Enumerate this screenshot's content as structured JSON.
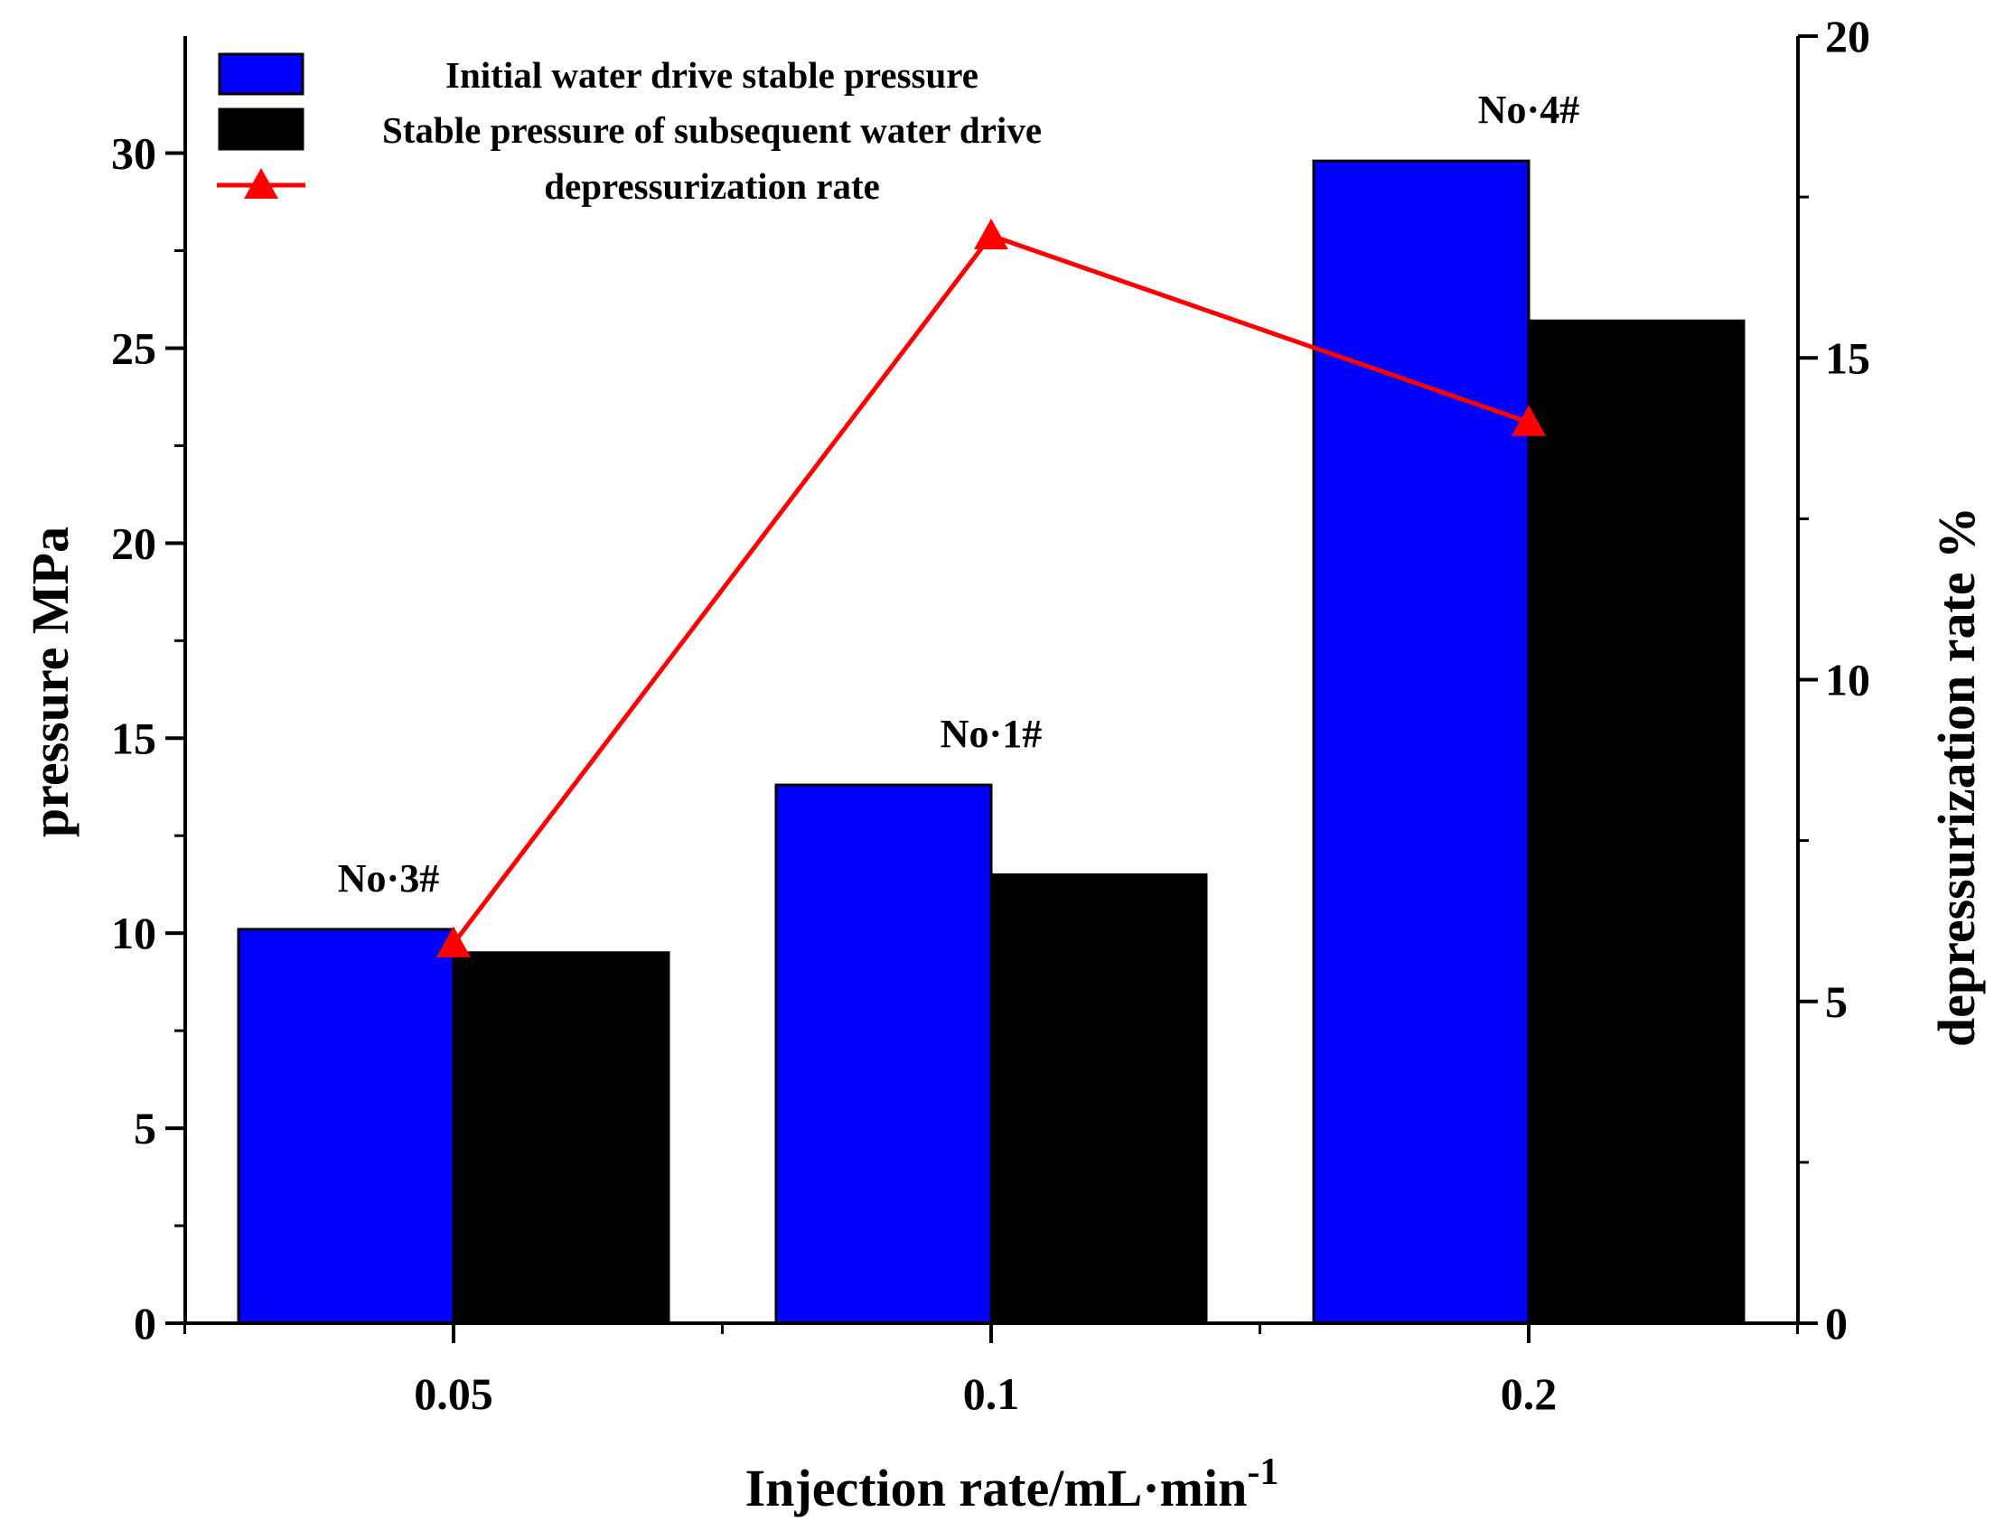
{
  "chart_data": {
    "type": "bar",
    "categories": [
      "0.05",
      "0.1",
      "0.2"
    ],
    "xlabel": "Injection rate/mL·min",
    "xlabel_sup": "-1",
    "ylabel": "pressure MPa",
    "y2label": "depressurization rate %",
    "ylim": [
      0,
      33
    ],
    "y2lim": [
      0,
      20
    ],
    "yticks": [
      0,
      5,
      10,
      15,
      20,
      25,
      30
    ],
    "y2ticks": [
      0,
      5,
      10,
      15,
      20
    ],
    "grid": false,
    "legend_position": "top-left",
    "series": [
      {
        "name": "Initial water drive stable pressure",
        "type": "bar",
        "axis": "left",
        "color": "#0000ff",
        "values": [
          10.1,
          13.8,
          29.8
        ]
      },
      {
        "name": "Stable pressure of subsequent water drive",
        "type": "bar",
        "axis": "left",
        "color": "#000000",
        "values": [
          9.5,
          11.5,
          25.7
        ]
      },
      {
        "name": "depressurization rate",
        "type": "line",
        "axis": "right",
        "color": "#ff0000",
        "marker": "triangle",
        "values": [
          5.9,
          16.9,
          14.0
        ]
      }
    ],
    "annotations": [
      "No·3#",
      "No·1#",
      "No·4#"
    ]
  }
}
